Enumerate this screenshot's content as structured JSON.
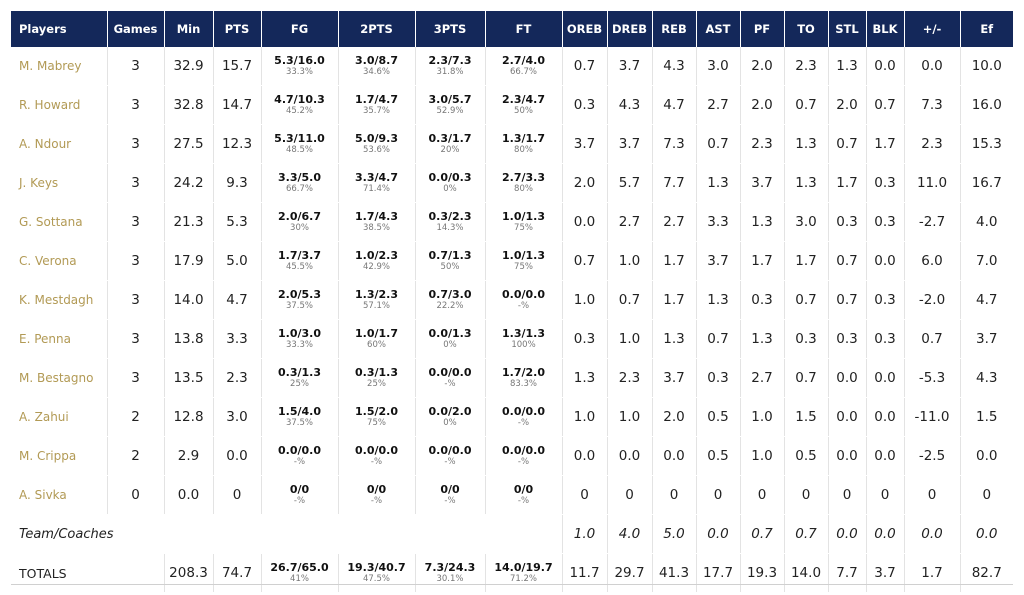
{
  "headers": [
    "Players",
    "Games",
    "Min",
    "PTS",
    "FG",
    "2PTS",
    "3PTS",
    "FT",
    "OREB",
    "DREB",
    "REB",
    "AST",
    "PF",
    "TO",
    "STL",
    "BLK",
    "+/-",
    "Ef"
  ],
  "players": [
    {
      "name": "M. Mabrey",
      "games": "3",
      "min": "32.9",
      "pts": "15.7",
      "fg": "5.3/16.0",
      "fg_pct": "33.3%",
      "p2": "3.0/8.7",
      "p2_pct": "34.6%",
      "p3": "2.3/7.3",
      "p3_pct": "31.8%",
      "ft": "2.7/4.0",
      "ft_pct": "66.7%",
      "oreb": "0.7",
      "dreb": "3.7",
      "reb": "4.3",
      "ast": "3.0",
      "pf": "2.0",
      "to": "2.3",
      "stl": "1.3",
      "blk": "0.0",
      "pm": "0.0",
      "ef": "10.0"
    },
    {
      "name": "R. Howard",
      "games": "3",
      "min": "32.8",
      "pts": "14.7",
      "fg": "4.7/10.3",
      "fg_pct": "45.2%",
      "p2": "1.7/4.7",
      "p2_pct": "35.7%",
      "p3": "3.0/5.7",
      "p3_pct": "52.9%",
      "ft": "2.3/4.7",
      "ft_pct": "50%",
      "oreb": "0.3",
      "dreb": "4.3",
      "reb": "4.7",
      "ast": "2.7",
      "pf": "2.0",
      "to": "0.7",
      "stl": "2.0",
      "blk": "0.7",
      "pm": "7.3",
      "ef": "16.0"
    },
    {
      "name": "A. Ndour",
      "games": "3",
      "min": "27.5",
      "pts": "12.3",
      "fg": "5.3/11.0",
      "fg_pct": "48.5%",
      "p2": "5.0/9.3",
      "p2_pct": "53.6%",
      "p3": "0.3/1.7",
      "p3_pct": "20%",
      "ft": "1.3/1.7",
      "ft_pct": "80%",
      "oreb": "3.7",
      "dreb": "3.7",
      "reb": "7.3",
      "ast": "0.7",
      "pf": "2.3",
      "to": "1.3",
      "stl": "0.7",
      "blk": "1.7",
      "pm": "2.3",
      "ef": "15.3"
    },
    {
      "name": "J. Keys",
      "games": "3",
      "min": "24.2",
      "pts": "9.3",
      "fg": "3.3/5.0",
      "fg_pct": "66.7%",
      "p2": "3.3/4.7",
      "p2_pct": "71.4%",
      "p3": "0.0/0.3",
      "p3_pct": "0%",
      "ft": "2.7/3.3",
      "ft_pct": "80%",
      "oreb": "2.0",
      "dreb": "5.7",
      "reb": "7.7",
      "ast": "1.3",
      "pf": "3.7",
      "to": "1.3",
      "stl": "1.7",
      "blk": "0.3",
      "pm": "11.0",
      "ef": "16.7"
    },
    {
      "name": "G. Sottana",
      "games": "3",
      "min": "21.3",
      "pts": "5.3",
      "fg": "2.0/6.7",
      "fg_pct": "30%",
      "p2": "1.7/4.3",
      "p2_pct": "38.5%",
      "p3": "0.3/2.3",
      "p3_pct": "14.3%",
      "ft": "1.0/1.3",
      "ft_pct": "75%",
      "oreb": "0.0",
      "dreb": "2.7",
      "reb": "2.7",
      "ast": "3.3",
      "pf": "1.3",
      "to": "3.0",
      "stl": "0.3",
      "blk": "0.3",
      "pm": "-2.7",
      "ef": "4.0"
    },
    {
      "name": "C. Verona",
      "games": "3",
      "min": "17.9",
      "pts": "5.0",
      "fg": "1.7/3.7",
      "fg_pct": "45.5%",
      "p2": "1.0/2.3",
      "p2_pct": "42.9%",
      "p3": "0.7/1.3",
      "p3_pct": "50%",
      "ft": "1.0/1.3",
      "ft_pct": "75%",
      "oreb": "0.7",
      "dreb": "1.0",
      "reb": "1.7",
      "ast": "3.7",
      "pf": "1.7",
      "to": "1.7",
      "stl": "0.7",
      "blk": "0.0",
      "pm": "6.0",
      "ef": "7.0"
    },
    {
      "name": "K. Mestdagh",
      "games": "3",
      "min": "14.0",
      "pts": "4.7",
      "fg": "2.0/5.3",
      "fg_pct": "37.5%",
      "p2": "1.3/2.3",
      "p2_pct": "57.1%",
      "p3": "0.7/3.0",
      "p3_pct": "22.2%",
      "ft": "0.0/0.0",
      "ft_pct": "-%",
      "oreb": "1.0",
      "dreb": "0.7",
      "reb": "1.7",
      "ast": "1.3",
      "pf": "0.3",
      "to": "0.7",
      "stl": "0.7",
      "blk": "0.3",
      "pm": "-2.0",
      "ef": "4.7"
    },
    {
      "name": "E. Penna",
      "games": "3",
      "min": "13.8",
      "pts": "3.3",
      "fg": "1.0/3.0",
      "fg_pct": "33.3%",
      "p2": "1.0/1.7",
      "p2_pct": "60%",
      "p3": "0.0/1.3",
      "p3_pct": "0%",
      "ft": "1.3/1.3",
      "ft_pct": "100%",
      "oreb": "0.3",
      "dreb": "1.0",
      "reb": "1.3",
      "ast": "0.7",
      "pf": "1.3",
      "to": "0.3",
      "stl": "0.3",
      "blk": "0.3",
      "pm": "0.7",
      "ef": "3.7"
    },
    {
      "name": "M. Bestagno",
      "games": "3",
      "min": "13.5",
      "pts": "2.3",
      "fg": "0.3/1.3",
      "fg_pct": "25%",
      "p2": "0.3/1.3",
      "p2_pct": "25%",
      "p3": "0.0/0.0",
      "p3_pct": "-%",
      "ft": "1.7/2.0",
      "ft_pct": "83.3%",
      "oreb": "1.3",
      "dreb": "2.3",
      "reb": "3.7",
      "ast": "0.3",
      "pf": "2.7",
      "to": "0.7",
      "stl": "0.0",
      "blk": "0.0",
      "pm": "-5.3",
      "ef": "4.3"
    },
    {
      "name": "A. Zahui",
      "games": "2",
      "min": "12.8",
      "pts": "3.0",
      "fg": "1.5/4.0",
      "fg_pct": "37.5%",
      "p2": "1.5/2.0",
      "p2_pct": "75%",
      "p3": "0.0/2.0",
      "p3_pct": "0%",
      "ft": "0.0/0.0",
      "ft_pct": "-%",
      "oreb": "1.0",
      "dreb": "1.0",
      "reb": "2.0",
      "ast": "0.5",
      "pf": "1.0",
      "to": "1.5",
      "stl": "0.0",
      "blk": "0.0",
      "pm": "-11.0",
      "ef": "1.5"
    },
    {
      "name": "M. Crippa",
      "games": "2",
      "min": "2.9",
      "pts": "0.0",
      "fg": "0.0/0.0",
      "fg_pct": "-%",
      "p2": "0.0/0.0",
      "p2_pct": "-%",
      "p3": "0.0/0.0",
      "p3_pct": "-%",
      "ft": "0.0/0.0",
      "ft_pct": "-%",
      "oreb": "0.0",
      "dreb": "0.0",
      "reb": "0.0",
      "ast": "0.5",
      "pf": "1.0",
      "to": "0.5",
      "stl": "0.0",
      "blk": "0.0",
      "pm": "-2.5",
      "ef": "0.0"
    },
    {
      "name": "A. Sivka",
      "games": "0",
      "min": "0.0",
      "pts": "0",
      "fg": "0/0",
      "fg_pct": "-%",
      "p2": "0/0",
      "p2_pct": "-%",
      "p3": "0/0",
      "p3_pct": "-%",
      "ft": "0/0",
      "ft_pct": "-%",
      "oreb": "0",
      "dreb": "0",
      "reb": "0",
      "ast": "0",
      "pf": "0",
      "to": "0",
      "stl": "0",
      "blk": "0",
      "pm": "0",
      "ef": "0"
    }
  ],
  "team": {
    "label": "Team/Coaches",
    "oreb": "1.0",
    "dreb": "4.0",
    "reb": "5.0",
    "ast": "0.0",
    "pf": "0.7",
    "to": "0.7",
    "stl": "0.0",
    "blk": "0.0",
    "pm": "0.0",
    "ef": "0.0"
  },
  "totals": {
    "label": "TOTALS",
    "min": "208.3",
    "pts": "74.7",
    "fg": "26.7/65.0",
    "fg_pct": "41%",
    "p2": "19.3/40.7",
    "p2_pct": "47.5%",
    "p3": "7.3/24.3",
    "p3_pct": "30.1%",
    "ft": "14.0/19.7",
    "ft_pct": "71.2%",
    "oreb": "11.7",
    "dreb": "29.7",
    "reb": "41.3",
    "ast": "17.7",
    "pf": "19.3",
    "to": "14.0",
    "stl": "7.7",
    "blk": "3.7",
    "pm": "1.7",
    "ef": "82.7"
  }
}
